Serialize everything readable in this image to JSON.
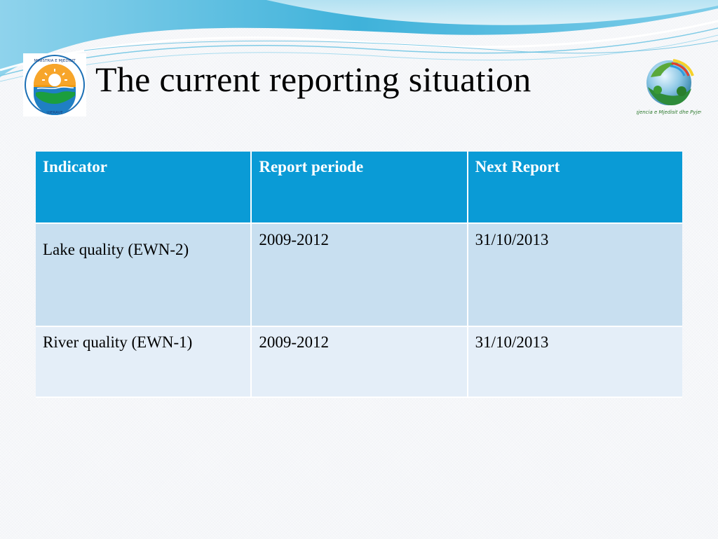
{
  "slide": {
    "title": "The current reporting situation"
  },
  "logos": {
    "left": {
      "icon": "ministry-seal-icon",
      "ring_text": "MINISTRIA E MJEDISIT PYJEVE DHE ADMINISTRIMIT TE UJERAVE"
    },
    "right": {
      "icon": "agency-globe-icon",
      "caption": "Agjencia e Mjedisit dhe Pyjeve"
    }
  },
  "table": {
    "headers": [
      "Indicator",
      "Report periode",
      "Next Report"
    ],
    "rows": [
      [
        "Lake quality (EWN-2)",
        "2009-2012",
        "31/10/2013"
      ],
      [
        "River quality (EWN-1)",
        "2009-2012",
        "31/10/2013"
      ]
    ]
  },
  "colors": {
    "header_bg": "#0a9bd6",
    "row_odd_bg": "#c8dff0",
    "row_even_bg": "#e4eef8",
    "wave_primary": "#3bb3d9",
    "wave_light": "#a9dcef"
  }
}
